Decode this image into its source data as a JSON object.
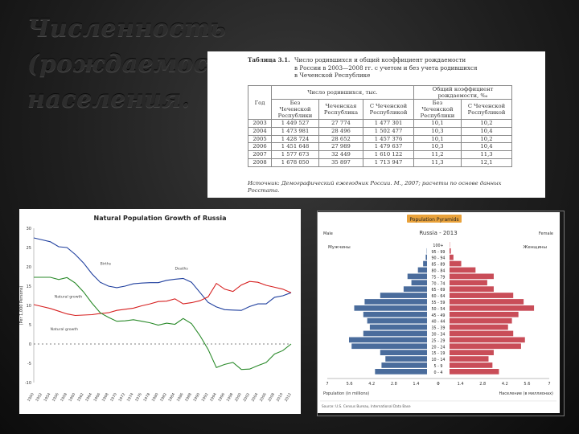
{
  "slide": {
    "title_line1": "Численность (рождаемость)",
    "title_line2": "населения."
  },
  "table": {
    "caption_label": "Таблица 3.1.",
    "caption_lines": [
      "Число родившихся и общий коэффициент рождаемости",
      "в России в 2003—2008 гг. с учетом и без учета родившихся",
      "в Чеченской Республике"
    ],
    "header_year": "Год",
    "header_group1": "Число родившихся, тыс.",
    "header_group2": "Общий коэффициент рождаемости, ‰",
    "col_without": "Без Чеченской Республики",
    "col_chechen": "Чеченская Республика",
    "col_with": "С Чеченской Республикой",
    "rows": [
      {
        "year": "2003",
        "without": "1 449 527",
        "chechen": "27 774",
        "with": "1 477 301",
        "rate_without": "10,1",
        "rate_with": "10,2"
      },
      {
        "year": "2004",
        "without": "1 473 981",
        "chechen": "28 496",
        "with": "1 502 477",
        "rate_without": "10,3",
        "rate_with": "10,4"
      },
      {
        "year": "2005",
        "without": "1 428 724",
        "chechen": "28 652",
        "with": "1 457 376",
        "rate_without": "10,1",
        "rate_with": "10,2"
      },
      {
        "year": "2006",
        "without": "1 451 648",
        "chechen": "27 989",
        "with": "1 479 637",
        "rate_without": "10,3",
        "rate_with": "10,4"
      },
      {
        "year": "2007",
        "without": "1 577 673",
        "chechen": "32 449",
        "with": "1 610 122",
        "rate_without": "11,2",
        "rate_with": "11,3"
      },
      {
        "year": "2008",
        "without": "1 678 050",
        "chechen": "35 897",
        "with": "1 713 947",
        "rate_without": "11,3",
        "rate_with": "12,1"
      }
    ],
    "source_note": "Источник: Демографический ежегодник России. М., 2007; расчеты по основе данных Росстата."
  },
  "chart_data": [
    {
      "type": "line",
      "title": "Natural Population Growth of Russia",
      "ylabel": "(Per 1,000 Persons)",
      "ylim": [
        -10,
        30
      ],
      "yticks": [
        "30",
        "25",
        "20",
        "15",
        "10",
        "5",
        "0",
        "-5",
        "-10"
      ],
      "x": [
        1950,
        1952,
        1954,
        1956,
        1958,
        1960,
        1962,
        1964,
        1966,
        1968,
        1970,
        1972,
        1974,
        1976,
        1978,
        1980,
        1982,
        1984,
        1986,
        1988,
        1990,
        1992,
        1994,
        1996,
        1998,
        2000,
        2002,
        2004,
        2006,
        2008,
        2010,
        2012
      ],
      "xtick_labels": [
        "1950",
        "1952",
        "1954",
        "1956",
        "1958",
        "1960",
        "1962",
        "1964",
        "1966",
        "1968",
        "1970",
        "1972",
        "1974",
        "1976",
        "1978",
        "1980",
        "1982",
        "1984",
        "1986",
        "1988",
        "1990",
        "1992",
        "1994",
        "1996",
        "1998",
        "2000",
        "2002",
        "2004",
        "2006",
        "2008",
        "2010",
        "2012"
      ],
      "series": [
        {
          "name": "Births",
          "color": "#1f3f9e",
          "values": [
            27.5,
            27.0,
            26.5,
            25.2,
            25.0,
            23.2,
            21.0,
            18.2,
            16.0,
            15.0,
            14.6,
            15.0,
            15.6,
            15.8,
            15.9,
            15.9,
            16.5,
            16.8,
            17.0,
            16.0,
            13.4,
            10.8,
            9.6,
            8.9,
            8.8,
            8.7,
            9.7,
            10.4,
            10.4,
            12.1,
            12.5,
            13.3
          ]
        },
        {
          "name": "Deaths",
          "color": "#d62020",
          "values": [
            10.2,
            9.7,
            9.2,
            8.5,
            7.8,
            7.4,
            7.5,
            7.6,
            7.9,
            8.1,
            8.7,
            9.0,
            9.3,
            9.9,
            10.4,
            11.0,
            11.1,
            11.7,
            10.4,
            10.7,
            11.2,
            12.2,
            15.7,
            14.2,
            13.6,
            15.3,
            16.2,
            16.0,
            15.2,
            14.7,
            14.2,
            13.3
          ]
        },
        {
          "name": "Natural growth",
          "color": "#2a8a2a",
          "values": [
            17.3,
            17.3,
            17.3,
            16.7,
            17.2,
            15.8,
            13.5,
            10.6,
            8.1,
            6.9,
            5.9,
            6.0,
            6.3,
            5.9,
            5.5,
            4.9,
            5.4,
            5.1,
            6.6,
            5.3,
            2.2,
            -1.4,
            -6.1,
            -5.3,
            -4.8,
            -6.6,
            -6.5,
            -5.6,
            -4.8,
            -2.6,
            -1.7,
            0.0
          ]
        }
      ],
      "annotations": [
        "Births",
        "Deaths",
        "Natural growth"
      ],
      "grid": false,
      "legend": "inline labels"
    },
    {
      "type": "bar",
      "title": "Population Pyramids",
      "subtitle": "Russia - 2013",
      "left_label": "Male",
      "right_label": "Female",
      "left_group_label": "Мужчины",
      "right_group_label": "Женщины",
      "xlabel_left": "Population (in millions)",
      "xlabel_right": "Население (в миллионах)",
      "xticks_left": [
        "7",
        "5.6",
        "4.2",
        "2.8",
        "1.4",
        "0"
      ],
      "xticks_right": [
        "0",
        "1.4",
        "2.8",
        "4.2",
        "5.6",
        "7"
      ],
      "categories": [
        "100+",
        "95 - 99",
        "90 - 94",
        "85 - 89",
        "80 - 84",
        "75 - 79",
        "70 - 74",
        "65 - 69",
        "60 - 64",
        "55 - 59",
        "50 - 54",
        "45 - 49",
        "40 - 44",
        "35 - 39",
        "30 - 34",
        "25 - 29",
        "20 - 24",
        "15 - 19",
        "10 - 14",
        "5 - 9",
        "0 - 4"
      ],
      "series": [
        {
          "name": "Male",
          "color": "#4a6c9c",
          "values": [
            0.0,
            0.02,
            0.1,
            0.3,
            0.7,
            1.5,
            1.2,
            1.8,
            3.6,
            4.8,
            5.6,
            4.9,
            4.6,
            4.4,
            4.9,
            6.0,
            5.8,
            3.6,
            3.2,
            3.5,
            4.0
          ]
        },
        {
          "name": "Female",
          "color": "#c94d58",
          "values": [
            0.02,
            0.1,
            0.3,
            0.9,
            2.0,
            3.4,
            2.9,
            3.4,
            4.9,
            5.7,
            6.5,
            5.3,
            4.8,
            4.5,
            4.9,
            5.8,
            5.5,
            3.4,
            3.0,
            3.3,
            3.8
          ]
        }
      ],
      "xlim": [
        -7,
        7
      ],
      "source": "Source: U.S. Census Bureau, International Data Base"
    }
  ]
}
